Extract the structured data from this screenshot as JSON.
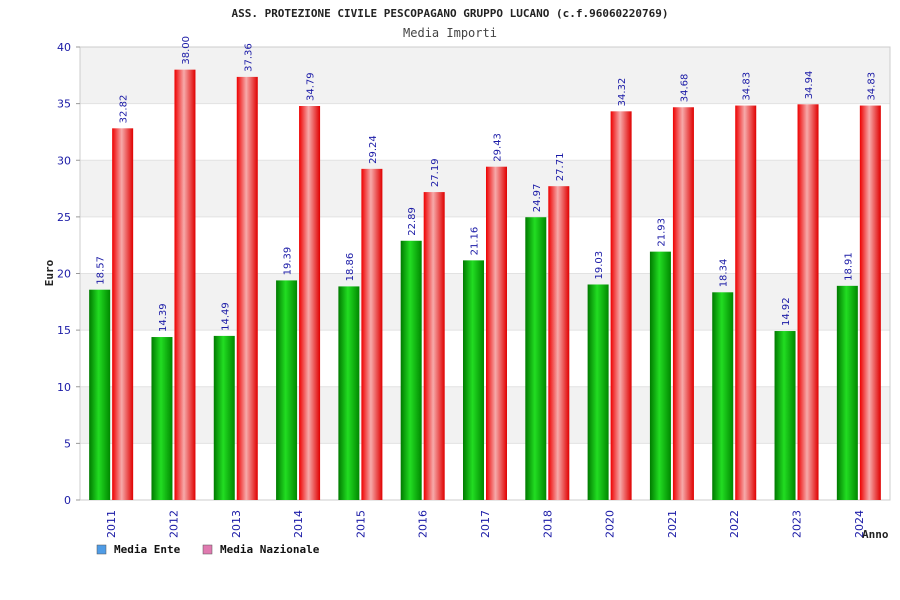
{
  "chart_data": {
    "type": "bar",
    "title": "ASS. PROTEZIONE CIVILE PESCOPAGANO GRUPPO LUCANO (c.f.96060220769)",
    "subtitle": "Media Importi",
    "xlabel": "Anno",
    "ylabel": "Euro",
    "ylim": [
      0,
      40
    ],
    "yticks": [
      "0",
      "5",
      "10",
      "15",
      "20",
      "25",
      "30",
      "35",
      "40"
    ],
    "grid": true,
    "legend_position": "bottom-left",
    "categories": [
      "2011",
      "2012",
      "2013",
      "2014",
      "2015",
      "2016",
      "2017",
      "2018",
      "2020",
      "2021",
      "2022",
      "2023",
      "2024"
    ],
    "series": [
      {
        "name": "Media Ente",
        "color": "#00aa00",
        "legend_color": "#4f9ce6",
        "values": [
          18.57,
          14.39,
          14.49,
          19.39,
          18.86,
          22.89,
          21.16,
          24.97,
          19.03,
          21.93,
          18.34,
          14.92,
          18.91
        ],
        "labels": [
          "18.57",
          "14.39",
          "14.49",
          "19.39",
          "18.86",
          "22.89",
          "21.16",
          "24.97",
          "19.03",
          "21.93",
          "18.34",
          "14.92",
          "18.91"
        ]
      },
      {
        "name": "Media Nazionale",
        "color": "#ee1111",
        "legend_color": "#e07ab0",
        "values": [
          32.82,
          38.0,
          37.36,
          34.79,
          29.24,
          27.19,
          29.43,
          27.71,
          34.32,
          34.68,
          34.83,
          34.94,
          34.83
        ],
        "labels": [
          "32.82",
          "38.00",
          "37.36",
          "34.79",
          "29.24",
          "27.19",
          "29.43",
          "27.71",
          "34.32",
          "34.68",
          "34.83",
          "34.94",
          "34.83"
        ]
      }
    ]
  }
}
